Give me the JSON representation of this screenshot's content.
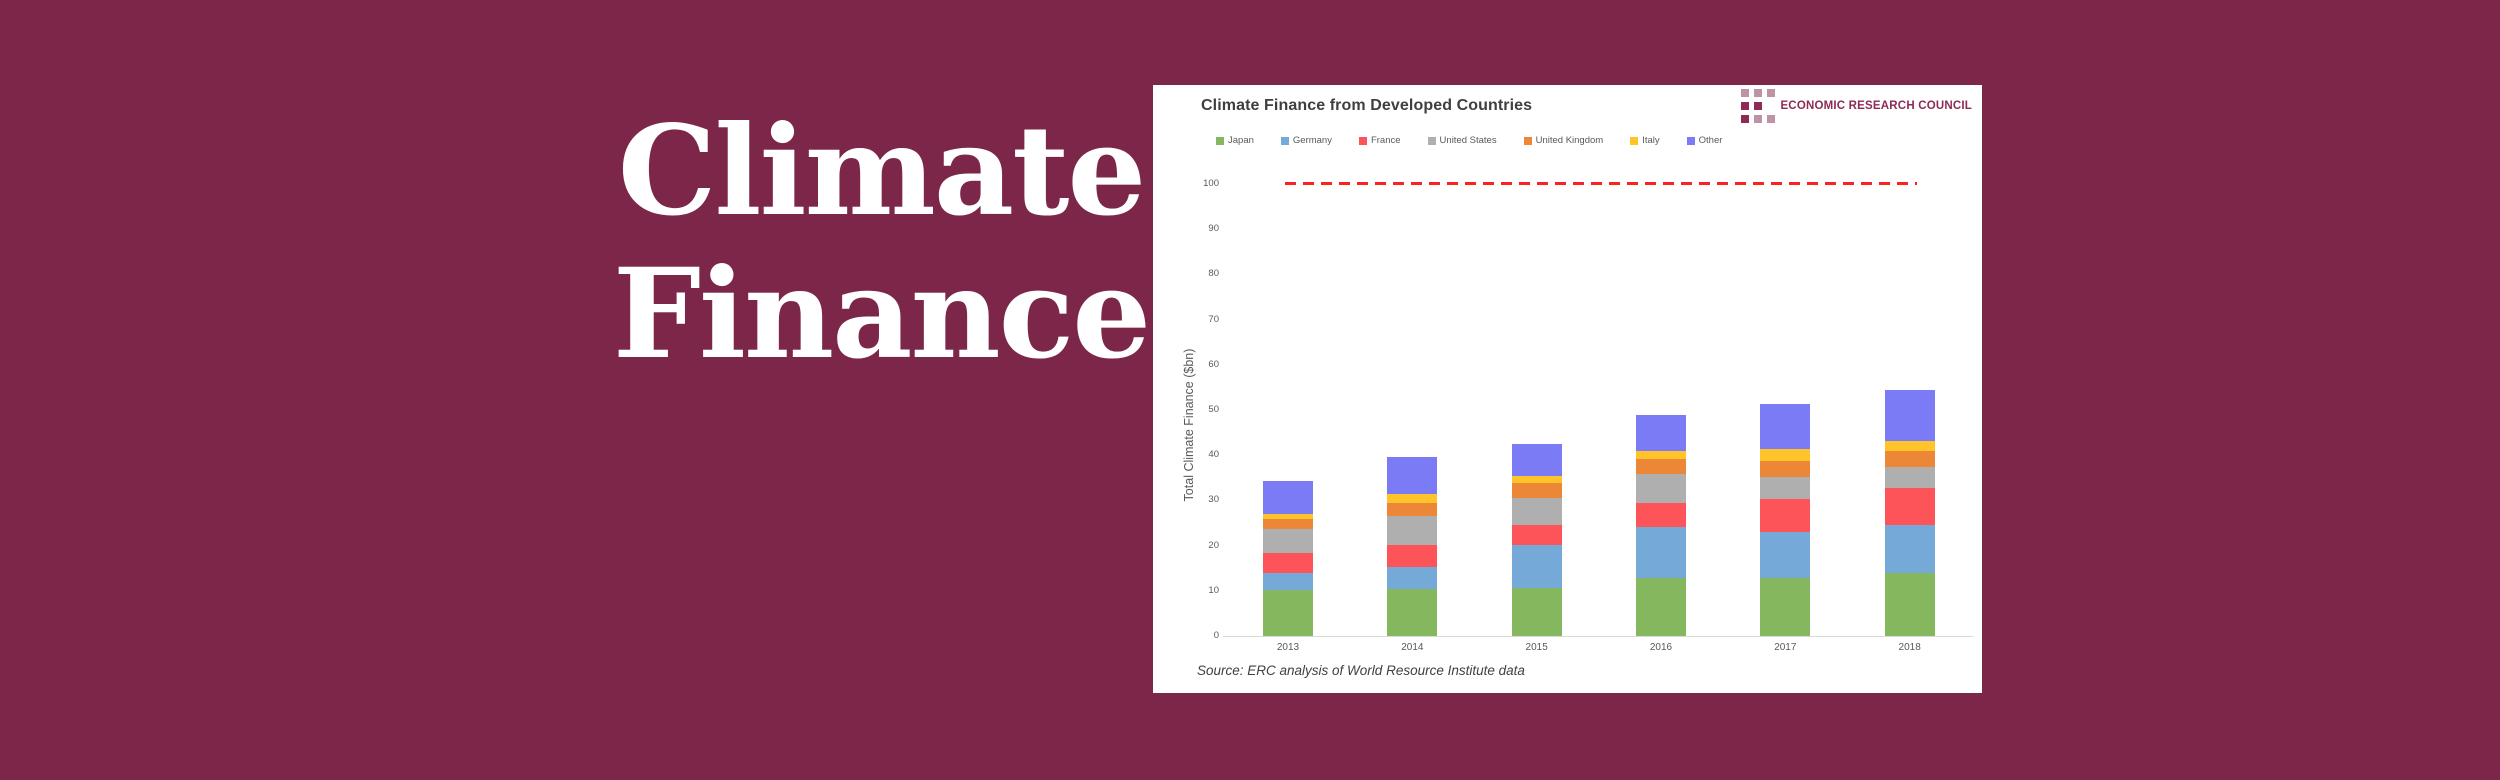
{
  "page": {
    "background_color": "#7C2749"
  },
  "hero": {
    "line1": "Climate",
    "line2": "Finance",
    "text_color": "#FFFFFF"
  },
  "card": {
    "title": "Climate Finance from Developed Countries",
    "logo": {
      "text": "ECONOMIC RESEARCH COUNCIL",
      "color": "#8D2B56",
      "square_dark": "#8D2B56",
      "square_light": "#BE93A6",
      "grid_pattern": [
        [
          "light",
          "light",
          "light"
        ],
        [
          "dark",
          "dark",
          "none"
        ],
        [
          "dark",
          "light",
          "light"
        ]
      ]
    },
    "source": "Source: ERC analysis of World Resource Institute data"
  },
  "chart_data": {
    "type": "bar",
    "stacked": true,
    "title": "Climate Finance from Developed Countries",
    "categories": [
      "2013",
      "2014",
      "2015",
      "2016",
      "2017",
      "2018"
    ],
    "series": [
      {
        "name": "Japan",
        "color": "#85B75F",
        "values": [
          10.2,
          10.4,
          10.7,
          12.9,
          12.9,
          14.0
        ]
      },
      {
        "name": "Germany",
        "color": "#74A9D8",
        "values": [
          3.8,
          4.8,
          9.5,
          11.2,
          10.0,
          10.6
        ]
      },
      {
        "name": "France",
        "color": "#FC5459",
        "values": [
          4.3,
          5.0,
          4.3,
          5.4,
          7.4,
          8.2
        ]
      },
      {
        "name": "United States",
        "color": "#AFAFAF",
        "values": [
          5.4,
          6.4,
          6.0,
          6.4,
          4.8,
          4.5
        ]
      },
      {
        "name": "United Kingdom",
        "color": "#EC8738",
        "values": [
          2.2,
          2.8,
          3.4,
          3.3,
          3.7,
          3.7
        ]
      },
      {
        "name": "Italy",
        "color": "#FFC429",
        "values": [
          1.1,
          2.0,
          1.4,
          1.7,
          2.6,
          2.2
        ]
      },
      {
        "name": "Other",
        "color": "#7B7BF5",
        "values": [
          7.4,
          8.1,
          7.2,
          7.9,
          10.0,
          11.3
        ]
      }
    ],
    "totals": [
      34.4,
      39.5,
      42.5,
      48.8,
      51.4,
      54.5
    ],
    "xlabel": "",
    "ylabel": "Total Climate Finance ($bn)",
    "ylim": [
      0,
      100
    ],
    "yticks": [
      0,
      10,
      20,
      30,
      40,
      50,
      60,
      70,
      80,
      90,
      100
    ],
    "reference_line": {
      "value": 100,
      "style": "dashed",
      "color": "#FF2020"
    },
    "legend_position": "top",
    "gridlines": false
  }
}
